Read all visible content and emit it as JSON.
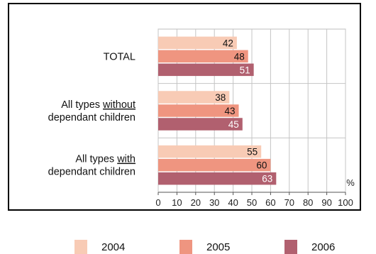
{
  "chart_data": {
    "type": "bar",
    "orientation": "horizontal",
    "categories": [
      [
        "TOTAL"
      ],
      [
        "All types without",
        "dependant children"
      ],
      [
        "All types with",
        "dependant children"
      ]
    ],
    "category_underlines": [
      "",
      "without",
      "with"
    ],
    "series": [
      {
        "name": "2004",
        "color": "#f8cbb5",
        "values": [
          42,
          38,
          55
        ]
      },
      {
        "name": "2005",
        "color": "#ef9580",
        "values": [
          48,
          43,
          60
        ]
      },
      {
        "name": "2006",
        "color": "#b1606f",
        "values": [
          51,
          45,
          63
        ]
      }
    ],
    "xlim": [
      0,
      100
    ],
    "xticks": [
      0,
      10,
      20,
      30,
      40,
      50,
      60,
      70,
      80,
      90,
      100
    ],
    "xunit": "%",
    "grid": true,
    "legend_position": "bottom"
  }
}
